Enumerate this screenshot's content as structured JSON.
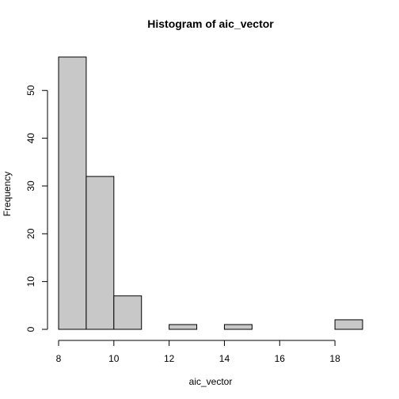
{
  "chart_data": {
    "type": "bar",
    "title": "Histogram of aic_vector",
    "xlabel": "aic_vector",
    "ylabel": "Frequency",
    "bins": [
      {
        "x0": 8,
        "x1": 9,
        "count": 57
      },
      {
        "x0": 9,
        "x1": 10,
        "count": 32
      },
      {
        "x0": 10,
        "x1": 11,
        "count": 7
      },
      {
        "x0": 11,
        "x1": 12,
        "count": 0
      },
      {
        "x0": 12,
        "x1": 13,
        "count": 1
      },
      {
        "x0": 13,
        "x1": 14,
        "count": 0
      },
      {
        "x0": 14,
        "x1": 15,
        "count": 1
      },
      {
        "x0": 15,
        "x1": 16,
        "count": 0
      },
      {
        "x0": 16,
        "x1": 17,
        "count": 0
      },
      {
        "x0": 17,
        "x1": 18,
        "count": 0
      },
      {
        "x0": 18,
        "x1": 19,
        "count": 2
      }
    ],
    "xlim": [
      8,
      19
    ],
    "ylim": [
      0,
      57
    ],
    "x_ticks": [
      8,
      10,
      12,
      14,
      16,
      18
    ],
    "y_ticks": [
      0,
      10,
      20,
      30,
      40,
      50
    ],
    "grid": false,
    "colors": {
      "bar_fill": "#c8c8c8",
      "bar_stroke": "#000000"
    }
  }
}
